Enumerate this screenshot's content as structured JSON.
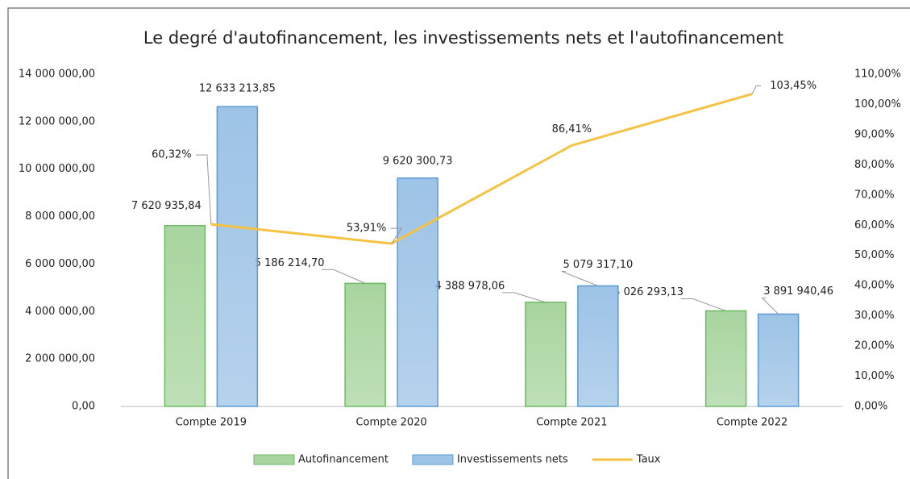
{
  "chart_data": {
    "type": "bar",
    "title": "Le degré d'autofinancement, les investissements nets et l'autofinancement",
    "categories": [
      "Compte 2019",
      "Compte 2020",
      "Compte 2021",
      "Compte 2022"
    ],
    "series": [
      {
        "name": "Autofinancement",
        "type": "bar",
        "color": "#a8d59f",
        "values": [
          7620935.84,
          5186214.7,
          4388978.06,
          4026293.13
        ],
        "value_labels": [
          "7 620 935,84",
          "5 186 214,70",
          "4 388 978,06",
          "4 026 293,13"
        ]
      },
      {
        "name": "Investissements nets",
        "type": "bar",
        "color": "#9dc3e6",
        "values": [
          12633213.85,
          9620300.73,
          5079317.1,
          3891940.46
        ],
        "value_labels": [
          "12 633 213,85",
          "9 620 300,73",
          "5 079 317,10",
          "3 891 940,46"
        ]
      },
      {
        "name": "Taux",
        "type": "line",
        "axis": "y2",
        "color": "#f5c242",
        "values": [
          60.32,
          53.91,
          86.41,
          103.45
        ],
        "value_labels": [
          "60,32%",
          "53,91%",
          "86,41%",
          "103,45%"
        ]
      }
    ],
    "ylim": [
      0,
      14000000
    ],
    "yticks": [
      {
        "value": 0,
        "label": "0,00"
      },
      {
        "value": 2000000,
        "label": "2 000 000,00"
      },
      {
        "value": 4000000,
        "label": "4 000 000,00"
      },
      {
        "value": 6000000,
        "label": "6 000 000,00"
      },
      {
        "value": 8000000,
        "label": "8 000 000,00"
      },
      {
        "value": 10000000,
        "label": "10 000 000,00"
      },
      {
        "value": 12000000,
        "label": "12 000 000,00"
      },
      {
        "value": 14000000,
        "label": "14 000 000,00"
      }
    ],
    "y2lim": [
      0,
      110
    ],
    "y2ticks": [
      {
        "value": 0,
        "label": "0,00%"
      },
      {
        "value": 10,
        "label": "10,00%"
      },
      {
        "value": 20,
        "label": "20,00%"
      },
      {
        "value": 30,
        "label": "30,00%"
      },
      {
        "value": 40,
        "label": "40,00%"
      },
      {
        "value": 50,
        "label": "50,00%"
      },
      {
        "value": 60,
        "label": "60,00%"
      },
      {
        "value": 70,
        "label": "70,00%"
      },
      {
        "value": 80,
        "label": "80,00%"
      },
      {
        "value": 90,
        "label": "90,00%"
      },
      {
        "value": 100,
        "label": "100,00%"
      },
      {
        "value": 110,
        "label": "110,00%"
      }
    ],
    "grid": false,
    "legend": "bottom"
  }
}
